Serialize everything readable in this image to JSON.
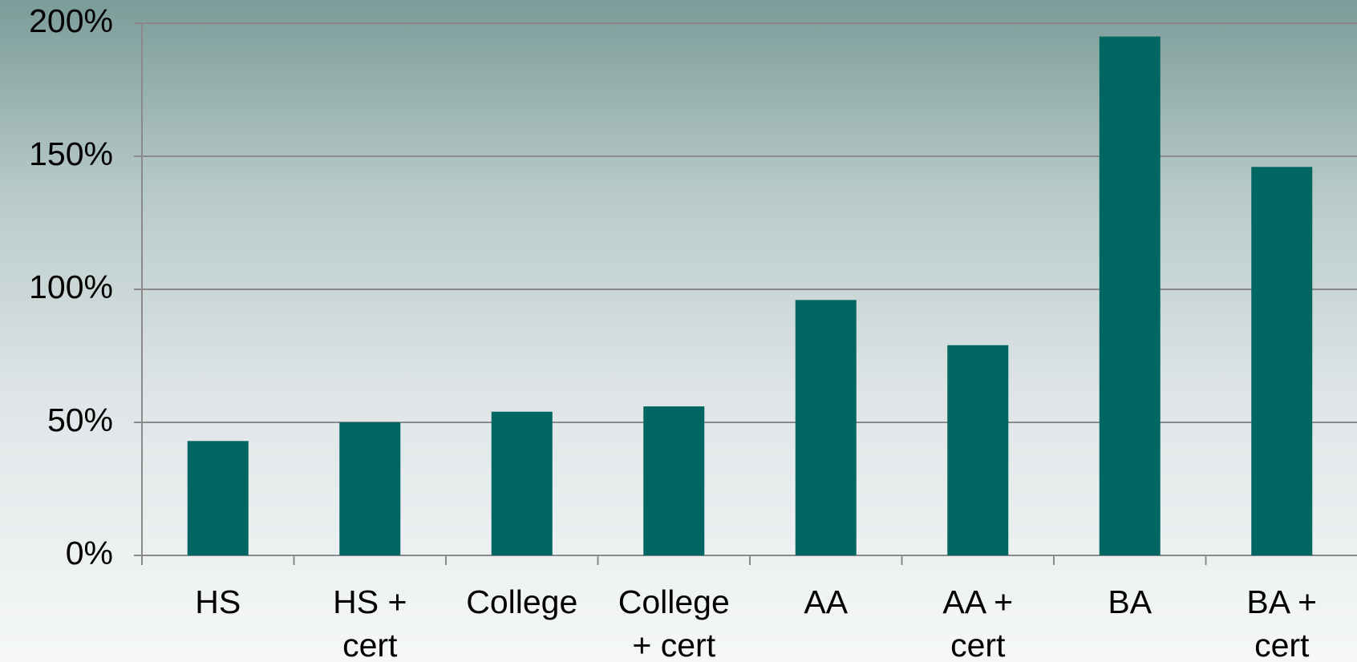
{
  "chart_data": {
    "type": "bar",
    "categories": [
      "HS",
      "HS + cert",
      "College",
      "College + cert",
      "AA",
      "AA + cert",
      "BA",
      "BA + cert"
    ],
    "values": [
      43,
      50,
      54,
      56,
      96,
      79,
      195,
      146
    ],
    "color": "#006661",
    "ylim": [
      0,
      200
    ],
    "yticks": [
      {
        "value": 0,
        "label": "0%"
      },
      {
        "value": 50,
        "label": "50%"
      },
      {
        "value": 100,
        "label": "100%"
      },
      {
        "value": 150,
        "label": "150%"
      },
      {
        "value": 200,
        "label": "200%"
      }
    ],
    "grid": true
  }
}
